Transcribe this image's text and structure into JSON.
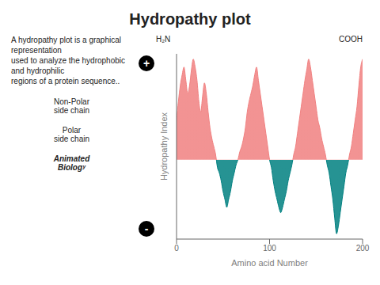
{
  "chart_data": {
    "type": "area",
    "title": "Hydropathy plot",
    "xlabel": "Amino acid Number",
    "ylabel": "Hydropathy Index",
    "x": [
      0,
      2,
      4,
      6,
      8,
      10,
      12,
      14,
      16,
      18,
      20,
      22,
      24,
      26,
      28,
      30,
      32,
      34,
      36,
      38,
      40,
      42,
      44,
      46,
      48,
      50,
      52,
      54,
      56,
      58,
      60,
      62,
      64,
      66,
      68,
      70,
      72,
      74,
      76,
      78,
      80,
      82,
      84,
      86,
      88,
      90,
      92,
      94,
      96,
      98,
      100,
      102,
      104,
      106,
      108,
      110,
      112,
      114,
      116,
      118,
      120,
      122,
      124,
      126,
      128,
      130,
      132,
      134,
      136,
      138,
      140,
      142,
      144,
      146,
      148,
      150,
      152,
      154,
      156,
      158,
      160,
      162,
      164,
      166,
      168,
      170,
      172,
      174,
      176,
      178,
      180,
      182,
      184,
      186,
      188,
      190,
      192,
      194,
      196,
      198,
      200
    ],
    "values": [
      1.5,
      2.2,
      2.8,
      3.2,
      3.5,
      3.0,
      2.5,
      2.8,
      3.4,
      3.8,
      3.5,
      3.0,
      2.2,
      1.8,
      2.4,
      2.9,
      2.5,
      1.8,
      1.2,
      0.8,
      0.5,
      0.2,
      -0.3,
      -0.5,
      -0.8,
      -1.2,
      -1.5,
      -1.8,
      -1.5,
      -1.2,
      -0.8,
      -0.5,
      -0.2,
      0.0,
      0.3,
      0.5,
      0.8,
      1.2,
      1.8,
      2.2,
      2.5,
      2.8,
      3.2,
      3.5,
      3.0,
      2.5,
      2.0,
      1.5,
      1.0,
      0.5,
      0.0,
      -0.3,
      -0.8,
      -1.2,
      -1.5,
      -1.8,
      -2.0,
      -1.8,
      -1.5,
      -1.2,
      -0.8,
      -0.5,
      -0.2,
      0.2,
      0.5,
      1.0,
      1.5,
      2.0,
      2.5,
      3.0,
      3.4,
      3.8,
      3.5,
      3.0,
      2.5,
      2.0,
      1.5,
      1.2,
      0.8,
      0.5,
      0.2,
      -0.2,
      -0.5,
      -1.0,
      -1.5,
      -2.2,
      -2.8,
      -2.5,
      -2.0,
      -1.5,
      -1.0,
      -0.5,
      -0.2,
      0.2,
      0.5,
      1.0,
      1.5,
      2.0,
      2.8,
      3.5,
      3.8
    ],
    "colors": [
      "#f08080",
      "#008080"
    ],
    "xlim": [
      0,
      200
    ],
    "xticks": [
      0,
      100,
      200
    ],
    "ylim": [
      -3,
      4
    ],
    "tick_labels": "x",
    "grid": false,
    "annotations": [
      "A hydropathy plot is a graphical representation\nused to analyze the hydrophobic and hydrophilic\nregions of a protein sequence..",
      "Non-Polar\nside chain",
      "Polar\nside chain",
      "Animated\nBiologʸ",
      "H₂N",
      "COOH",
      "+",
      "-"
    ]
  }
}
